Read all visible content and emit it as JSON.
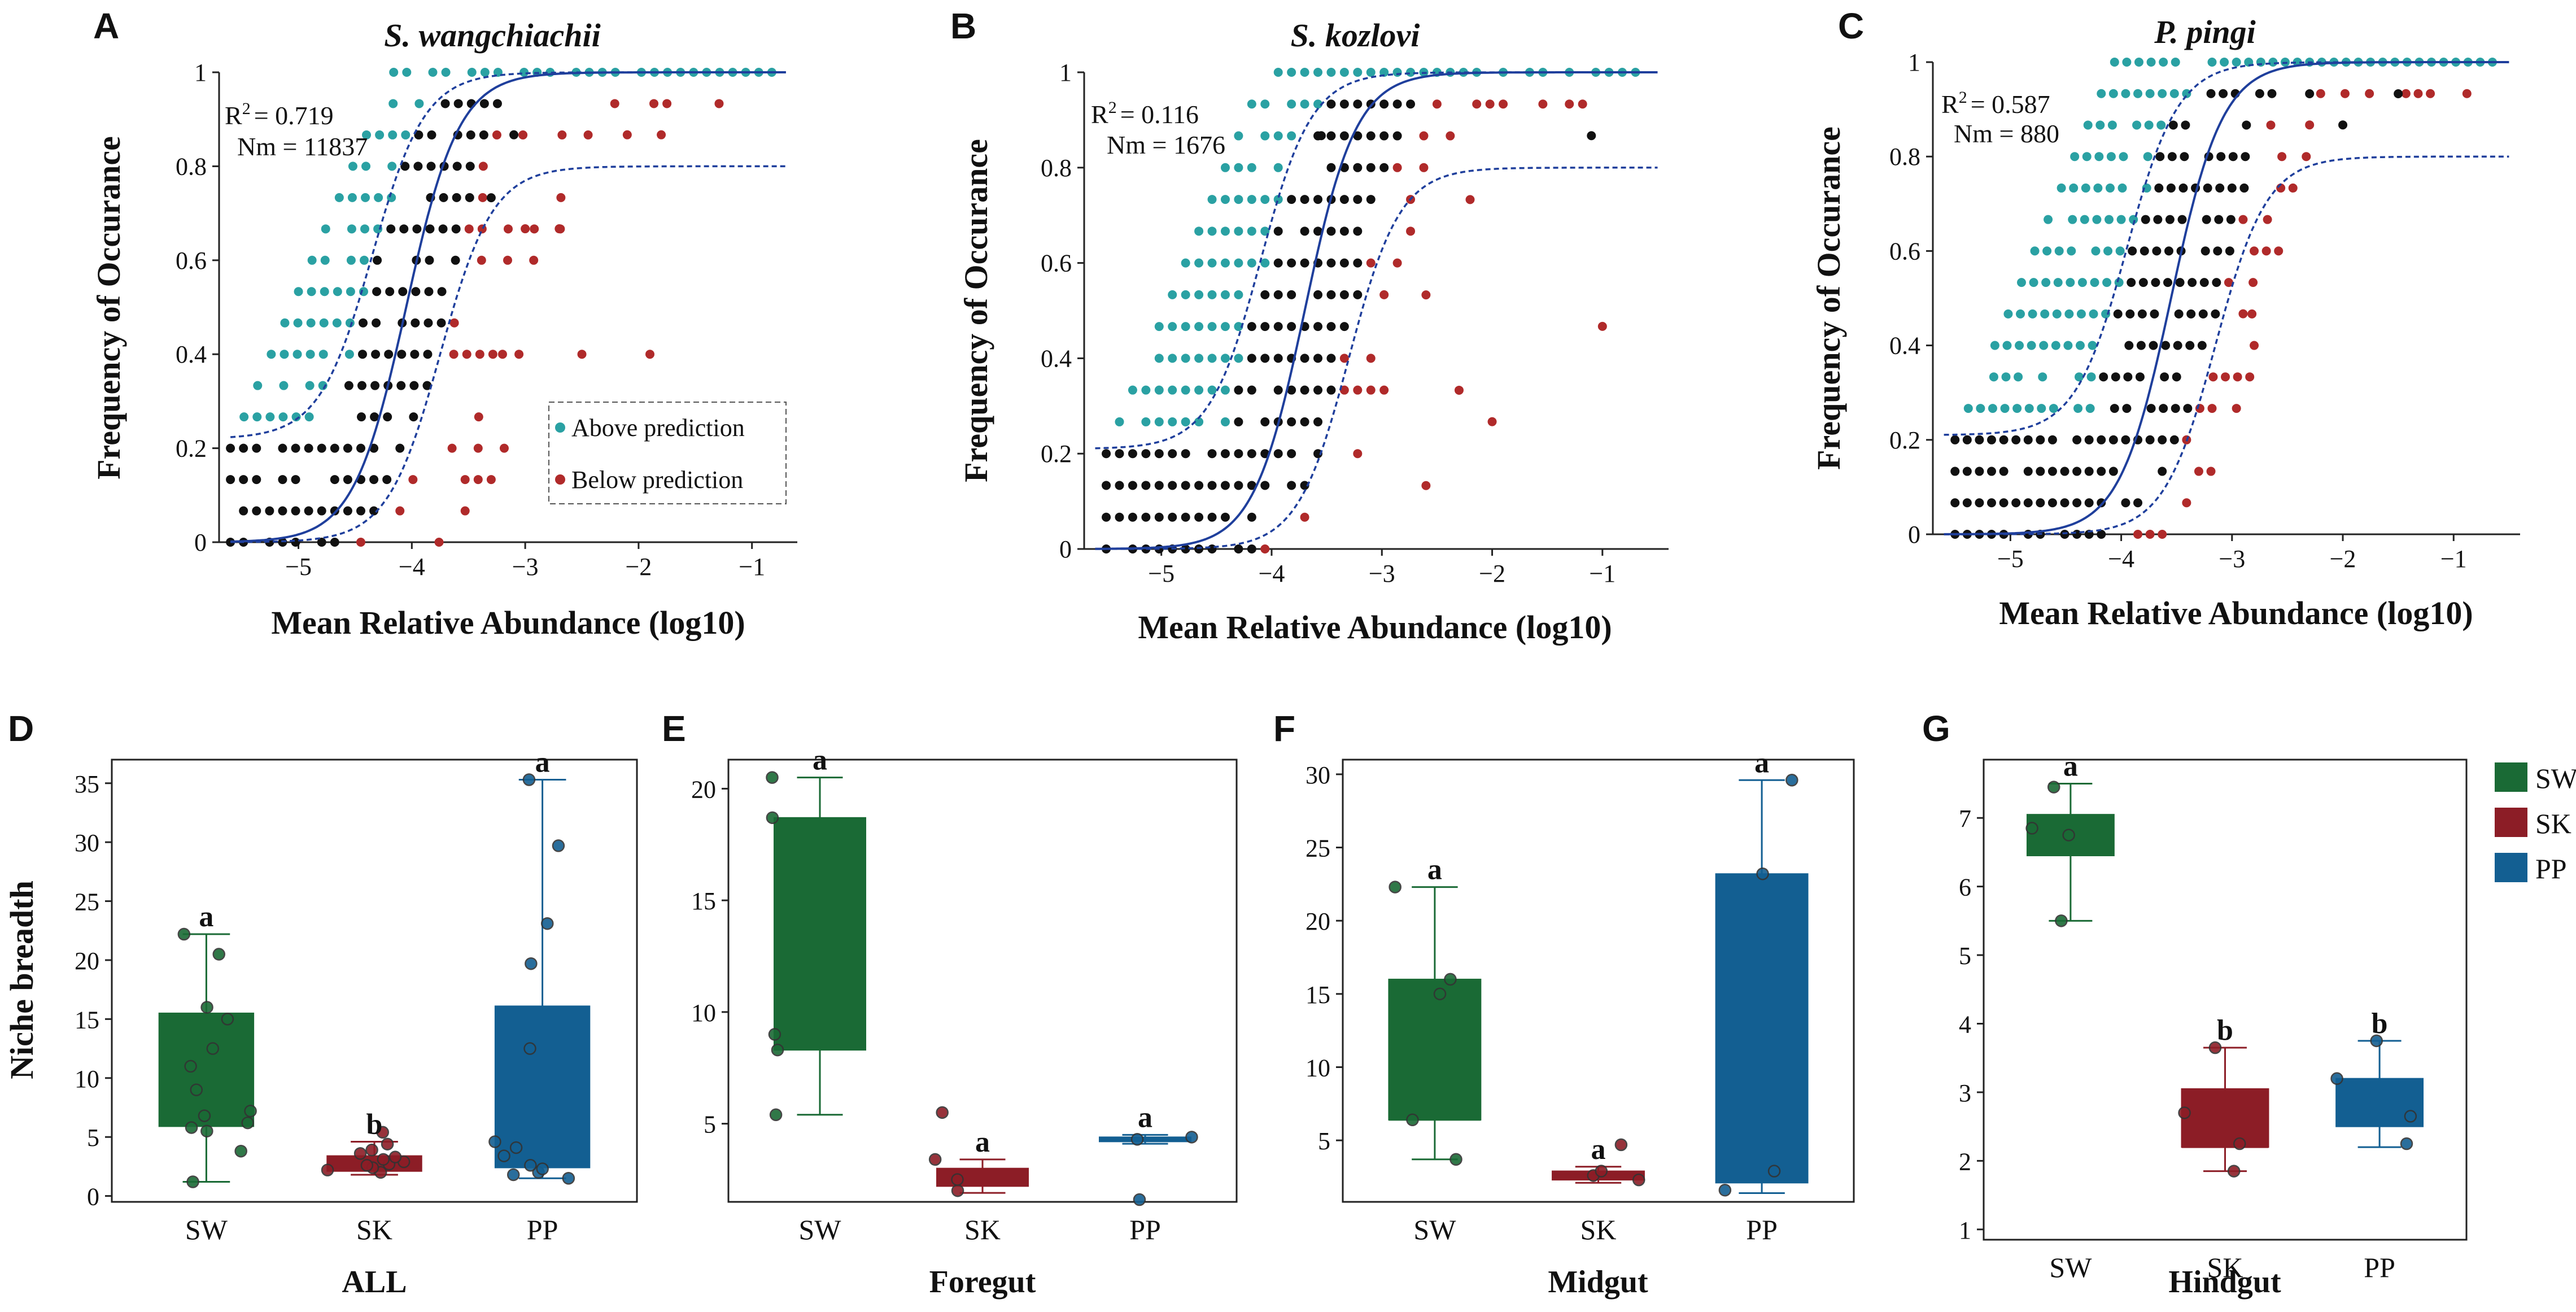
{
  "chart_data": [
    {
      "id": "A",
      "type": "scatter",
      "title": "S. wangchiachii",
      "xlabel": "Mean Relative Abundance (log10)",
      "ylabel": "Frequency of Occurance",
      "xlim": [
        -5.7,
        -0.6
      ],
      "ylim": [
        0,
        1
      ],
      "xticks": [
        "−5",
        "−4",
        "−3",
        "−2",
        "−1"
      ],
      "xtick_values": [
        -5,
        -4,
        -3,
        -2,
        -1
      ],
      "yticks": [
        "0",
        "0.2",
        "0.4",
        "0.6",
        "0.8",
        "1"
      ],
      "ytick_values": [
        0,
        0.2,
        0.4,
        0.6,
        0.8,
        1
      ],
      "r2_label": "R",
      "r2_sup": "2",
      "r2_value": "= 0.719",
      "nm_label": "Nm = 11837",
      "legend": {
        "above": "Above prediction",
        "below": "Below prediction",
        "placement": "bottom-right"
      },
      "model": {
        "center": -4.05,
        "slope": 4.3,
        "lower_center": -3.75,
        "upper_center": -4.35,
        "lower_cap": 0.8,
        "upper_floor": 0.22
      },
      "y_levels": 15,
      "x_start": -5.6,
      "steps": 0.115,
      "band": [
        1.55,
        1.2
      ],
      "above_max": -0.7,
      "extra_points_black": [
        [
          -3.1,
          0.867
        ],
        [
          -3.3,
          0.733
        ]
      ],
      "extra_points_red": [
        [
          -3.0,
          0.667
        ],
        [
          -2.7,
          0.667
        ],
        [
          -1.9,
          0.4
        ],
        [
          -2.5,
          0.4
        ],
        [
          -3.2,
          0.4
        ],
        [
          -2.1,
          0.867
        ],
        [
          -1.8,
          0.867
        ]
      ]
    },
    {
      "id": "B",
      "type": "scatter",
      "title": "S. kozlovi",
      "xlabel": "Mean Relative Abundance (log10)",
      "ylabel": "Frequency of Occurance",
      "xlim": [
        -5.7,
        -0.4
      ],
      "ylim": [
        0,
        1
      ],
      "xticks": [
        "−5",
        "−4",
        "−3",
        "−2",
        "−1"
      ],
      "xtick_values": [
        -5,
        -4,
        -3,
        -2,
        -1
      ],
      "yticks": [
        "0",
        "0.2",
        "0.4",
        "0.6",
        "0.8",
        "1"
      ],
      "ytick_values": [
        0,
        0.2,
        0.4,
        0.6,
        0.8,
        1
      ],
      "r2_label": "R",
      "r2_sup": "2",
      "r2_value": "= 0.116",
      "nm_label": "Nm = 1676",
      "model": {
        "center": -3.7,
        "slope": 4.3,
        "lower_center": -3.3,
        "upper_center": -4.1,
        "lower_cap": 0.8,
        "upper_floor": 0.21
      },
      "y_levels": 15,
      "x_start": -5.5,
      "steps": 0.12,
      "band": [
        1.3,
        0.9
      ],
      "above_max": -0.5,
      "extra_points_black": [
        [
          -1.1,
          0.867
        ],
        [
          -3.55,
          0.867
        ]
      ],
      "extra_points_red": [
        [
          -2.2,
          0.733
        ],
        [
          -1.0,
          0.467
        ],
        [
          -2.6,
          0.533
        ],
        [
          -2.3,
          0.333
        ],
        [
          -2.0,
          0.267
        ],
        [
          -2.6,
          0.133
        ]
      ]
    },
    {
      "id": "C",
      "type": "scatter",
      "title": "P. pingi",
      "xlabel": "Mean Relative Abundance (log10)",
      "ylabel": "Frequency of Occurance",
      "xlim": [
        -5.7,
        -0.4
      ],
      "ylim": [
        0,
        1
      ],
      "xticks": [
        "−5",
        "−4",
        "−3",
        "−2",
        "−1"
      ],
      "xtick_values": [
        -5,
        -4,
        -3,
        -2,
        -1
      ],
      "yticks": [
        "0",
        "0.2",
        "0.4",
        "0.6",
        "0.8",
        "1"
      ],
      "ytick_values": [
        0,
        0.2,
        0.4,
        0.6,
        0.8,
        1
      ],
      "r2_label": "R",
      "r2_sup": "2",
      "r2_value": "= 0.587",
      "nm_label": "Nm = 880",
      "model": {
        "center": -3.55,
        "slope": 4.3,
        "lower_center": -3.15,
        "upper_center": -3.95,
        "lower_cap": 0.8,
        "upper_floor": 0.21
      },
      "y_levels": 15,
      "x_start": -5.5,
      "steps": 0.11,
      "band": [
        1.35,
        0.9
      ],
      "above_max": -0.5,
      "extra_points_black": [
        [
          -1.5,
          0.933
        ],
        [
          -2.0,
          0.867
        ],
        [
          -2.3,
          0.933
        ]
      ],
      "extra_points_red": [
        [
          -2.3,
          0.867
        ],
        [
          -2.8,
          0.4
        ],
        [
          -2.9,
          0.467
        ]
      ]
    },
    {
      "id": "D",
      "type": "box",
      "xlabel": "ALL",
      "ylabel": "Niche breadth",
      "categories": [
        "SW",
        "SK",
        "PP"
      ],
      "ylim": [
        -0.5,
        37
      ],
      "yticks": [
        0,
        5,
        10,
        15,
        20,
        25,
        30,
        35
      ],
      "boxes": [
        {
          "group": "SW",
          "min": 1.2,
          "q1": 5.9,
          "median": 7.5,
          "q3": 15.5,
          "max": 22.2,
          "letter": "a",
          "points": [
            1.2,
            3.8,
            5.5,
            5.8,
            6.2,
            6.8,
            7.2,
            9.0,
            11.0,
            12.5,
            15.0,
            16.0,
            20.5,
            22.2
          ]
        },
        {
          "group": "SK",
          "min": 1.8,
          "q1": 2.1,
          "median": 2.8,
          "q3": 3.4,
          "max": 4.6,
          "letter": "b",
          "points": [
            2.0,
            2.2,
            2.4,
            2.6,
            2.7,
            2.9,
            3.1,
            3.3,
            3.6,
            3.9,
            4.4,
            5.4
          ]
        },
        {
          "group": "PP",
          "min": 1.5,
          "q1": 2.4,
          "median": 3.0,
          "q3": 16.1,
          "max": 35.3,
          "letter": "a",
          "points": [
            1.5,
            1.8,
            2.0,
            2.3,
            2.6,
            3.4,
            4.1,
            4.6,
            12.5,
            19.7,
            23.1,
            29.7,
            35.3
          ]
        }
      ]
    },
    {
      "id": "E",
      "type": "box",
      "xlabel": "Foregut",
      "ylabel": "",
      "categories": [
        "SW",
        "SK",
        "PP"
      ],
      "ylim": [
        1.5,
        21.3
      ],
      "yticks": [
        5,
        10,
        15,
        20
      ],
      "boxes": [
        {
          "group": "SW",
          "min": 5.4,
          "q1": 8.3,
          "median": 9.0,
          "q3": 18.7,
          "max": 20.5,
          "letter": "a",
          "points": [
            5.4,
            8.3,
            9.0,
            18.7,
            20.5
          ]
        },
        {
          "group": "SK",
          "min": 1.9,
          "q1": 2.2,
          "median": 2.6,
          "q3": 3.0,
          "max": 3.4,
          "letter": "a",
          "points": [
            2.0,
            2.5,
            3.4,
            5.5
          ]
        },
        {
          "group": "PP",
          "min": 4.1,
          "q1": 4.2,
          "median": 4.3,
          "q3": 4.4,
          "max": 4.5,
          "letter": "a",
          "points": [
            1.6,
            4.3,
            4.4
          ]
        }
      ]
    },
    {
      "id": "F",
      "type": "box",
      "xlabel": "Midgut",
      "ylabel": "",
      "categories": [
        "SW",
        "SK",
        "PP"
      ],
      "ylim": [
        0.8,
        31
      ],
      "yticks": [
        5,
        10,
        15,
        20,
        25,
        30
      ],
      "boxes": [
        {
          "group": "SW",
          "min": 3.7,
          "q1": 6.4,
          "median": 6.4,
          "q3": 16.0,
          "max": 22.3,
          "letter": "a",
          "points": [
            3.7,
            6.4,
            15.0,
            16.0,
            22.3
          ]
        },
        {
          "group": "SK",
          "min": 2.1,
          "q1": 2.3,
          "median": 2.6,
          "q3": 2.9,
          "max": 3.2,
          "letter": "a",
          "points": [
            2.3,
            2.6,
            2.9,
            4.7
          ]
        },
        {
          "group": "PP",
          "min": 1.4,
          "q1": 2.1,
          "median": 2.3,
          "q3": 23.2,
          "max": 29.6,
          "letter": "a",
          "points": [
            1.6,
            2.9,
            23.2,
            29.6
          ]
        }
      ]
    },
    {
      "id": "G",
      "type": "box",
      "xlabel": "Hindgut",
      "ylabel": "",
      "categories": [
        "SW",
        "SK",
        "PP"
      ],
      "ylim": [
        0.85,
        7.85
      ],
      "yticks": [
        1,
        2,
        3,
        4,
        5,
        6,
        7
      ],
      "boxes": [
        {
          "group": "SW",
          "min": 5.5,
          "q1": 6.45,
          "median": 6.8,
          "q3": 7.05,
          "max": 7.5,
          "letter": "a",
          "points": [
            5.5,
            6.75,
            6.85,
            7.45
          ]
        },
        {
          "group": "SK",
          "min": 1.85,
          "q1": 2.2,
          "median": 2.2,
          "q3": 3.05,
          "max": 3.65,
          "letter": "b",
          "points": [
            1.85,
            2.25,
            2.7,
            3.65
          ]
        },
        {
          "group": "PP",
          "min": 2.2,
          "q1": 2.5,
          "median": 2.6,
          "q3": 3.2,
          "max": 3.75,
          "letter": "b",
          "points": [
            2.25,
            2.65,
            3.2,
            3.75
          ]
        }
      ]
    }
  ],
  "legend": [
    {
      "label": "SW",
      "color": "#1a6a35"
    },
    {
      "label": "SK",
      "color": "#8c1d26"
    },
    {
      "label": "PP",
      "color": "#135f92"
    }
  ],
  "colors": {
    "fit_line": "#1f3f9c",
    "black_point": "#111111",
    "above_point": "#2aa1a3",
    "below_point": "#b02a2a",
    "SW": "#1a6a35",
    "SK": "#8c1d26",
    "PP": "#135f92"
  }
}
